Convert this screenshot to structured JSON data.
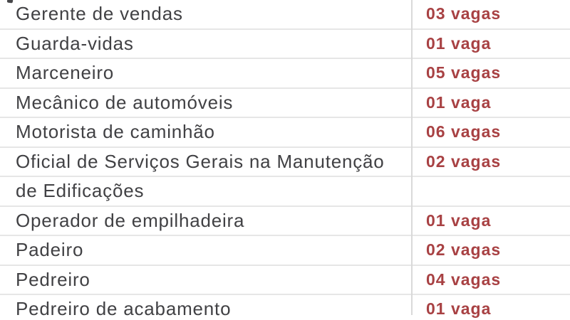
{
  "page": {
    "background_color": "#ffffff",
    "row_line_color": "#e6e6e6",
    "column_divider_color": "#d9d9d9",
    "job_title_color": "#414144",
    "vacancy_count_color": "#a84143"
  },
  "vacancy_table": {
    "rows": [
      {
        "title": "Gerente de vendas",
        "count": "03 vagas"
      },
      {
        "title": "Guarda-vidas",
        "count": "01 vaga"
      },
      {
        "title": "Marceneiro",
        "count": "05 vagas"
      },
      {
        "title": "Mecânico de automóveis",
        "count": "01 vaga"
      },
      {
        "title": "Motorista de caminhão",
        "count": "06 vagas"
      },
      {
        "title": "Oficial de Serviços Gerais na Manutenção",
        "count": "02 vagas"
      },
      {
        "title": "de Edificações",
        "count": ""
      },
      {
        "title": "Operador de empilhadeira",
        "count": "01 vaga"
      },
      {
        "title": "Padeiro",
        "count": "02 vagas"
      },
      {
        "title": "Pedreiro",
        "count": "04 vagas"
      },
      {
        "title": "Pedreiro de acabamento",
        "count": "01 vaga"
      }
    ]
  }
}
